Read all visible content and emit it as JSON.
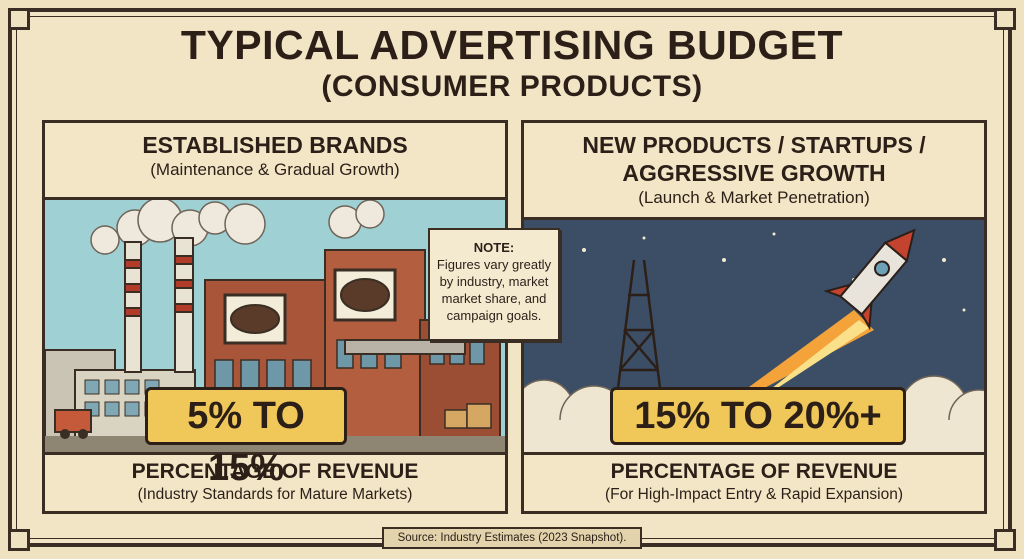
{
  "title": {
    "line1": "TYPICAL ADVERTISING BUDGET",
    "line2": "(CONSUMER PRODUCTS)"
  },
  "panels": [
    {
      "title": "ESTABLISHED BRANDS",
      "subtitle": "(Maintenance & Gradual Growth)",
      "value": "5% TO 15%",
      "footer_title": "PERCENTAGE OF REVENUE",
      "footer_subtitle": "(Industry Standards for Mature Markets)"
    },
    {
      "title_line1": "NEW PRODUCTS / STARTUPS /",
      "title_line2": "AGGRESSIVE GROWTH",
      "subtitle": "(Launch & Market Penetration)",
      "value": "15% TO 20%+",
      "footer_title": "PERCENTAGE OF REVENUE",
      "footer_subtitle": "(For High-Impact Entry & Rapid Expansion)"
    }
  ],
  "note": {
    "title": "NOTE:",
    "body": "Figures vary greatly by industry, market market share, and campaign goals."
  },
  "source": "Source: Industry Estimates (2023 Snapshot).",
  "colors": {
    "background": "#efe2c0",
    "ink": "#2b1f18",
    "badge": "#f0c85a",
    "sky_left": "#9fd0d4",
    "sky_right": "#3b4e66",
    "brick": "#a8553a",
    "flame": "#f3a33a"
  },
  "icons": [
    "factory-illustration",
    "rocket-illustration",
    "oil-derrick-illustration"
  ]
}
